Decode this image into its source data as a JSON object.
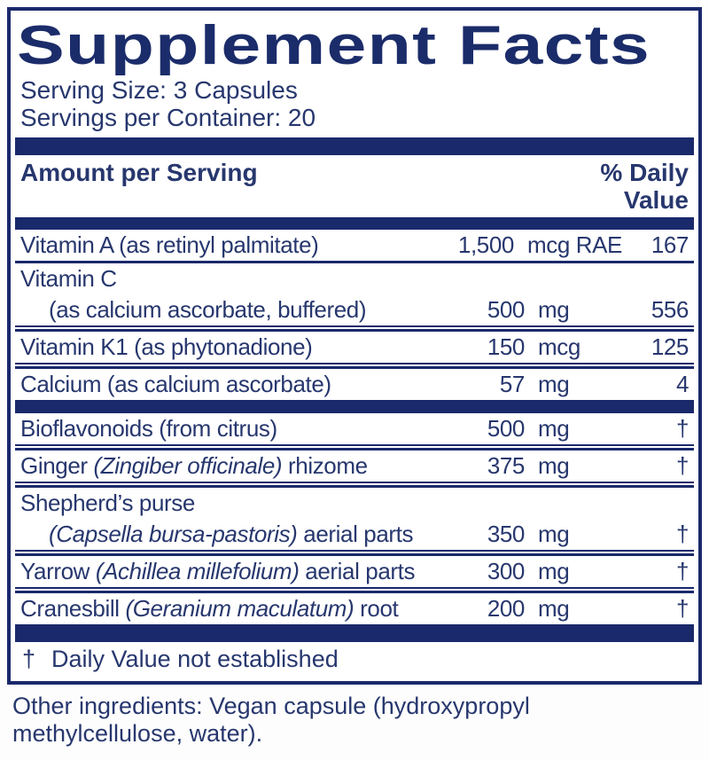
{
  "colors": {
    "navy": "#1a296b",
    "text": "#27376e",
    "title": "#1b2c6a",
    "background": "#ffffff"
  },
  "title": "Supplement Facts",
  "serving": {
    "serving_size": "Serving Size: 3 Capsules",
    "servings_per_container": "Servings per Container: 20"
  },
  "header": {
    "amount_label": "Amount per Serving",
    "dv_label": "% Daily Value"
  },
  "rows": [
    {
      "lines": [
        {
          "name": [
            {
              "t": "Vitamin A (as retinyl palmitate)"
            }
          ],
          "amount_value": "1,500",
          "amount_unit": "mcg RAE",
          "dv": "167"
        }
      ],
      "sep_after": "single"
    },
    {
      "lines": [
        {
          "name": [
            {
              "t": "Vitamin C"
            }
          ]
        },
        {
          "name": [
            {
              "t": "(as calcium ascorbate, buffered)"
            }
          ],
          "indent": true,
          "amount_value": "500",
          "amount_unit": "mg",
          "dv": "556"
        }
      ],
      "sep_after": "double"
    },
    {
      "lines": [
        {
          "name": [
            {
              "t": "Vitamin K1 (as phytonadione)"
            }
          ],
          "amount_value": "150",
          "amount_unit": "mcg",
          "dv": "125"
        }
      ],
      "sep_after": "double"
    },
    {
      "lines": [
        {
          "name": [
            {
              "t": "Calcium (as calcium ascorbate)"
            }
          ],
          "amount_value": "57",
          "amount_unit": "mg",
          "dv": "4"
        }
      ],
      "sep_after": "bar"
    },
    {
      "lines": [
        {
          "name": [
            {
              "t": "Bioflavonoids (from citrus)"
            }
          ],
          "amount_value": "500",
          "amount_unit": "mg",
          "dv": "†"
        }
      ],
      "sep_after": "double"
    },
    {
      "lines": [
        {
          "name": [
            {
              "t": "Ginger "
            },
            {
              "t": "(Zingiber officinale)",
              "i": true
            },
            {
              "t": " rhizome"
            }
          ],
          "amount_value": "375",
          "amount_unit": "mg",
          "dv": "†"
        }
      ],
      "sep_after": "double"
    },
    {
      "lines": [
        {
          "name": [
            {
              "t": "Shepherd’s purse"
            }
          ]
        },
        {
          "name": [
            {
              "t": "(Capsella bursa-pastoris)",
              "i": true
            },
            {
              "t": " aerial parts"
            }
          ],
          "indent": true,
          "amount_value": "350",
          "amount_unit": "mg",
          "dv": "†"
        }
      ],
      "sep_after": "double"
    },
    {
      "lines": [
        {
          "name": [
            {
              "t": "Yarrow "
            },
            {
              "t": "(Achillea millefolium)",
              "i": true
            },
            {
              "t": " aerial parts"
            }
          ],
          "amount_value": "300",
          "amount_unit": "mg",
          "dv": "†"
        }
      ],
      "sep_after": "double"
    },
    {
      "lines": [
        {
          "name": [
            {
              "t": "Cranesbill "
            },
            {
              "t": "(Geranium maculatum)",
              "i": true
            },
            {
              "t": " root"
            }
          ],
          "amount_value": "200",
          "amount_unit": "mg",
          "dv": "†"
        }
      ]
    }
  ],
  "footnote": {
    "symbol": "†",
    "text": "Daily Value not established"
  },
  "other_ingredients": "Other ingredients: Vegan capsule (hydroxypropyl methylcellulose, water)."
}
